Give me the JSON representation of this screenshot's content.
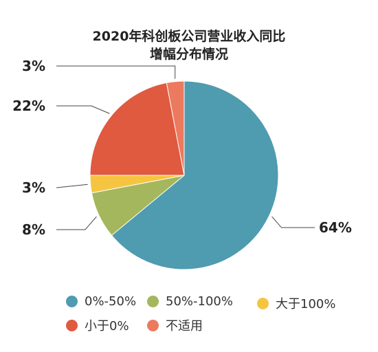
{
  "chart_data": {
    "type": "pie",
    "title_line1": "2020年科创板公司营业收入同比",
    "title_line2": "增幅分布情况",
    "slices": [
      {
        "label": "0%-50%",
        "value": 64,
        "data_label": "64%",
        "color": "#4f9bb0"
      },
      {
        "label": "50%-100%",
        "value": 8,
        "data_label": "8%",
        "color": "#a4b75c"
      },
      {
        "label": "大于100%",
        "value": 3,
        "data_label": "3%",
        "color": "#f5c542"
      },
      {
        "label": "小于0%",
        "value": 22,
        "data_label": "22%",
        "color": "#e05a3f"
      },
      {
        "label": "不适用",
        "value": 3,
        "data_label": "3%",
        "color": "#ec7a5f"
      }
    ],
    "legend_position": "bottom"
  }
}
